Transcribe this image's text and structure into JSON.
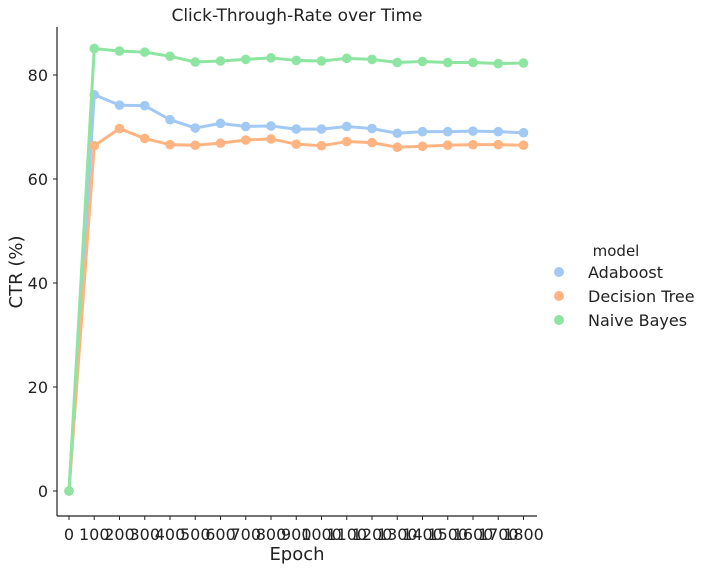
{
  "chart_data": {
    "type": "line",
    "title": "Click-Through-Rate over Time",
    "xlabel": "Epoch",
    "ylabel": "CTR (%)",
    "categories": [
      "0",
      "100",
      "200",
      "300",
      "400",
      "500",
      "600",
      "700",
      "800",
      "900",
      "1000",
      "1100",
      "1200",
      "1300",
      "1400",
      "1500",
      "1600",
      "1700",
      "1800"
    ],
    "ylim": [
      -5,
      90
    ],
    "yticks": [
      0,
      20,
      40,
      60,
      80
    ],
    "grid": false,
    "legend": {
      "title": "model",
      "placement": "right"
    },
    "series": [
      {
        "name": "Adaboost",
        "color": "#a1c9f4",
        "values": [
          0,
          76.2,
          74.2,
          74.1,
          71.4,
          69.8,
          70.7,
          70.1,
          70.2,
          69.6,
          69.6,
          70.1,
          69.7,
          68.8,
          69.1,
          69.1,
          69.2,
          69.1,
          68.9
        ]
      },
      {
        "name": "Decision Tree",
        "color": "#ffb482",
        "values": [
          0,
          66.4,
          69.7,
          67.8,
          66.6,
          66.5,
          66.9,
          67.5,
          67.7,
          66.7,
          66.4,
          67.2,
          67.0,
          66.1,
          66.3,
          66.5,
          66.6,
          66.6,
          66.5
        ]
      },
      {
        "name": "Naive Bayes",
        "color": "#8de5a1",
        "values": [
          0,
          85.1,
          84.6,
          84.4,
          83.6,
          82.5,
          82.7,
          83.0,
          83.3,
          82.8,
          82.7,
          83.2,
          83.0,
          82.4,
          82.6,
          82.4,
          82.4,
          82.2,
          82.3
        ]
      }
    ]
  }
}
